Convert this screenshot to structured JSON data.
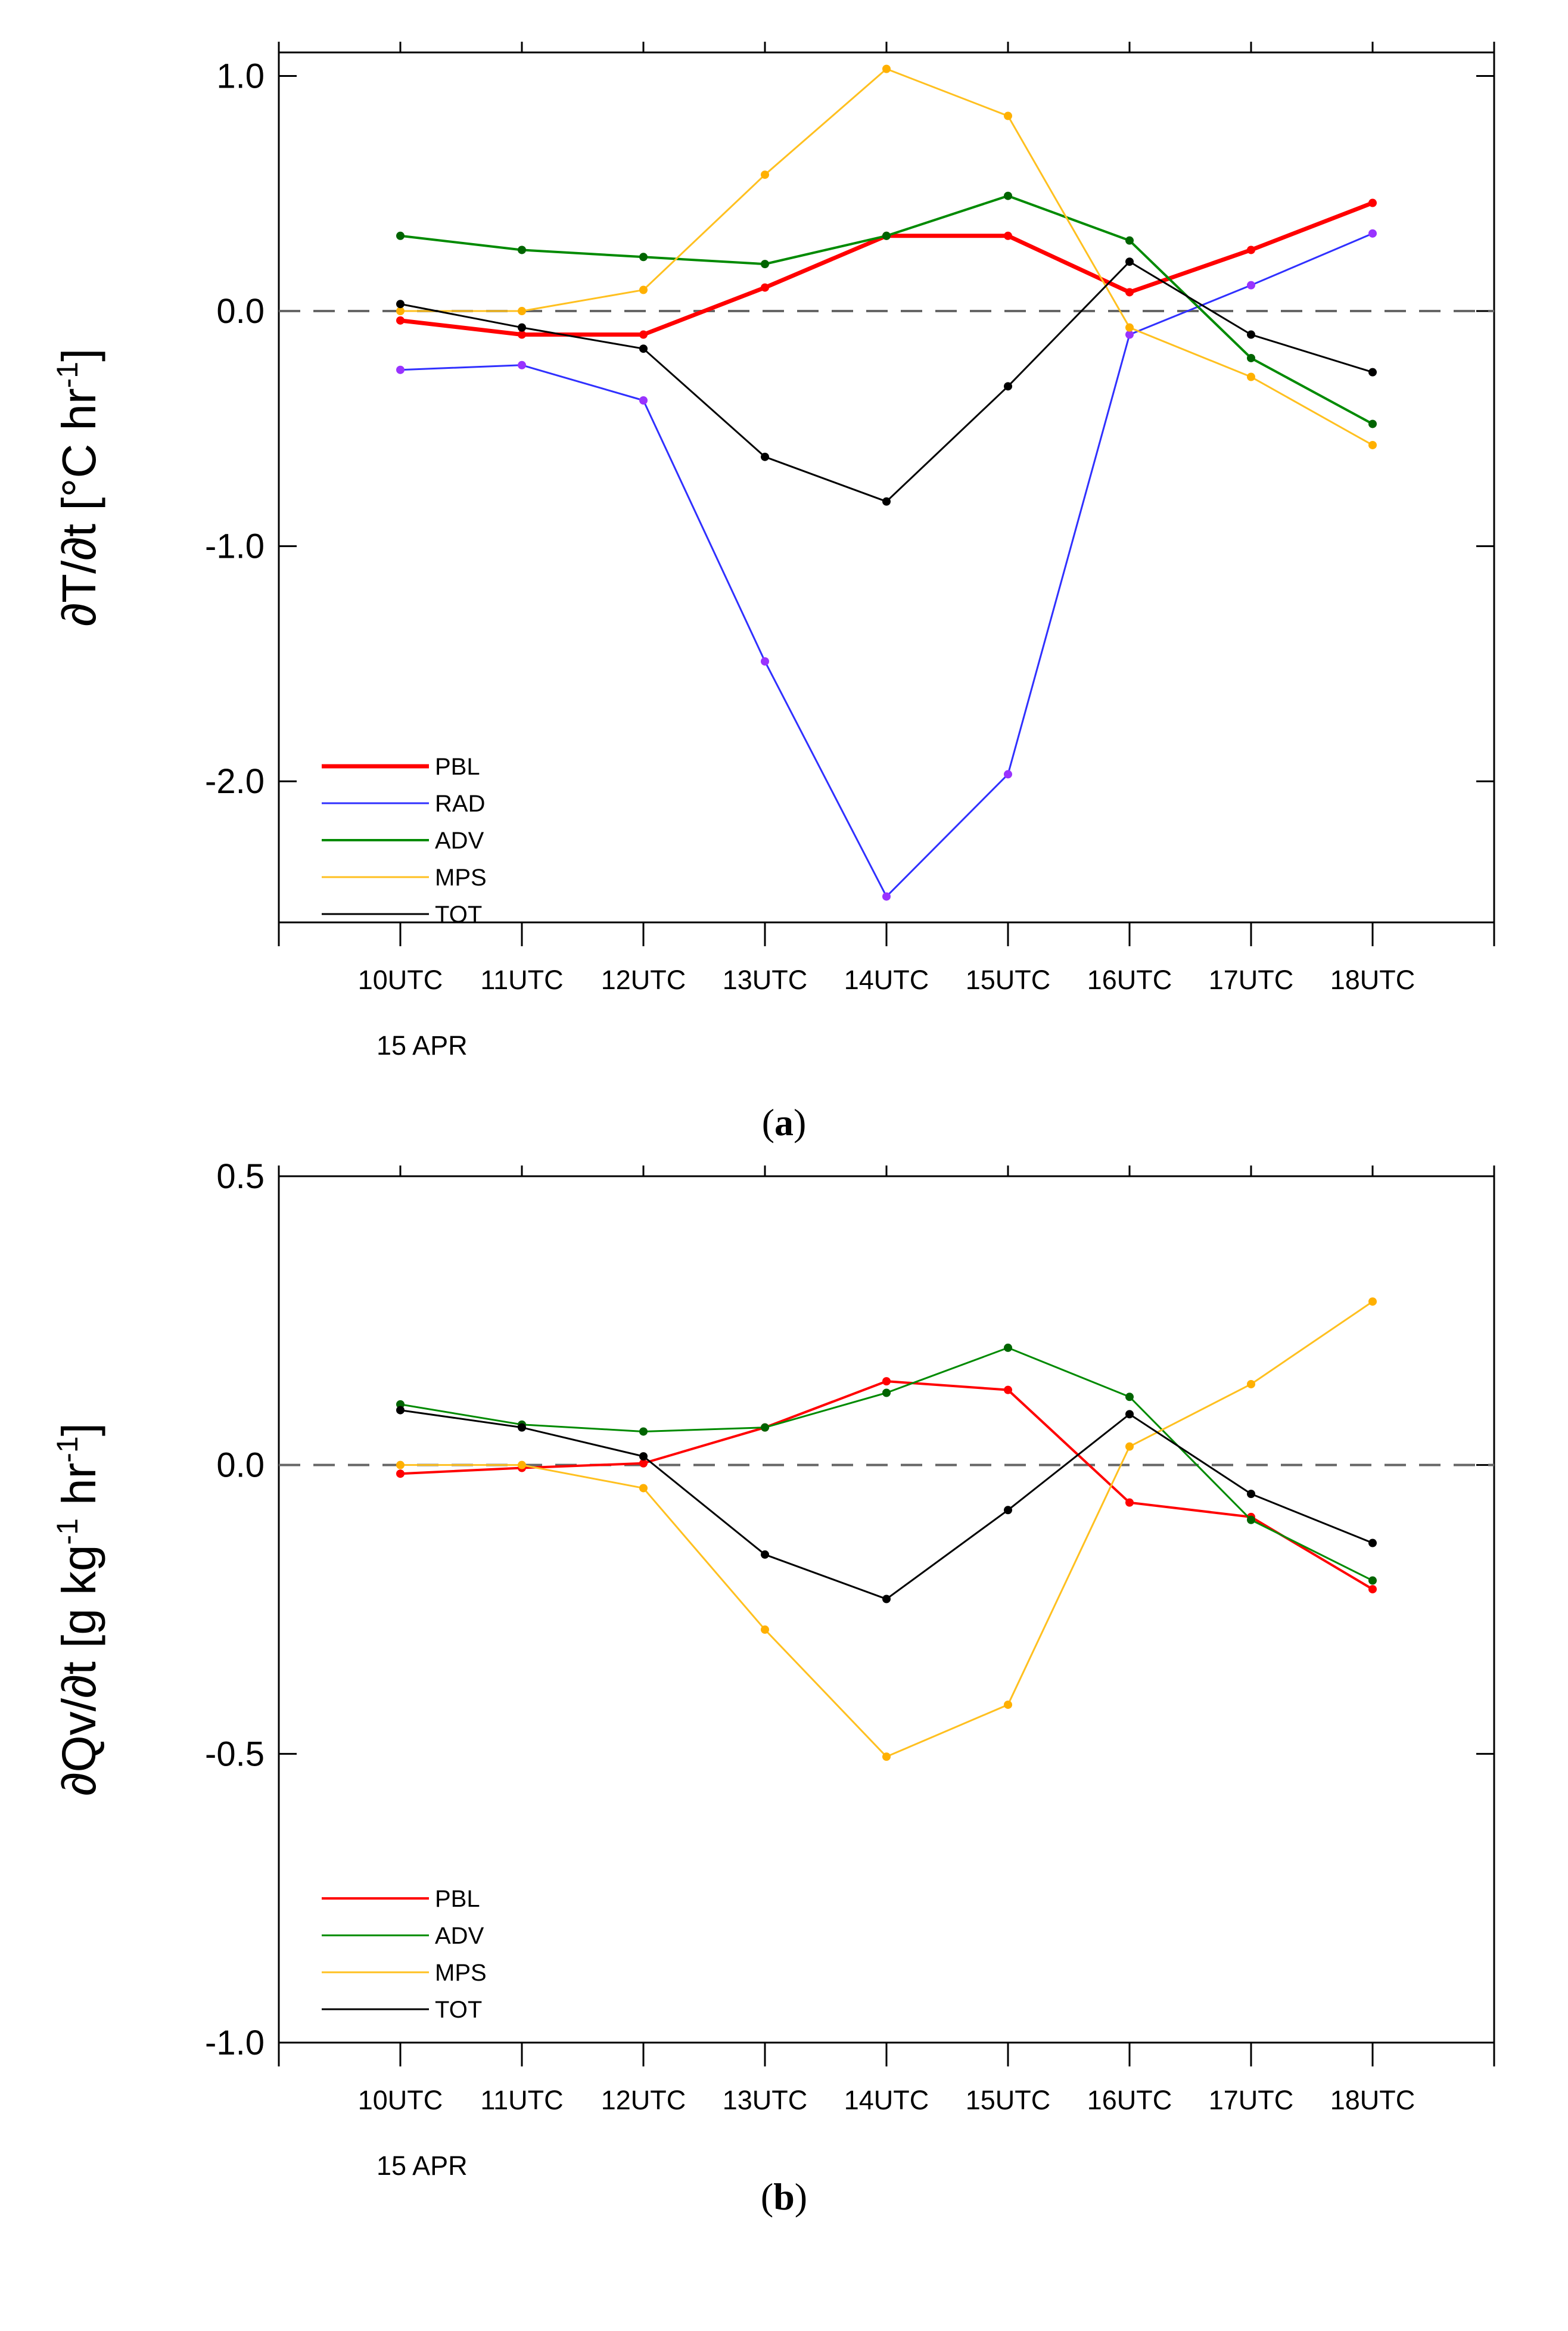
{
  "chart_data": [
    {
      "type": "line",
      "panel_label": "a",
      "ylabel": "∂T/∂t [°C hr-1]",
      "ylabel_main": "∂T/∂t [°C hr",
      "ylabel_sup": "-1",
      "ylabel_end": "]",
      "date_label": "15 APR",
      "ylim": [
        -2.6,
        1.1
      ],
      "xlim": [
        -1,
        9
      ],
      "yticks": [
        1.0,
        0.0,
        -1.0,
        -2.0
      ],
      "ytick_labels": [
        "1.0",
        "0.0",
        "-1.0",
        "-2.0"
      ],
      "categories": [
        "10UTC",
        "11UTC",
        "12UTC",
        "13UTC",
        "14UTC",
        "15UTC",
        "16UTC",
        "17UTC",
        "18UTC"
      ],
      "reference_line": 0.0,
      "series": [
        {
          "name": "PBL",
          "color": "#ff0000",
          "width": 7,
          "marker": "#ff0000",
          "values": [
            -0.04,
            -0.1,
            -0.1,
            0.1,
            0.32,
            0.32,
            0.08,
            0.26,
            0.46
          ]
        },
        {
          "name": "RAD",
          "color": "#3030ff",
          "width": 3,
          "marker": "#9933ff",
          "values": [
            -0.25,
            -0.23,
            -0.38,
            -1.49,
            -2.49,
            -1.97,
            -0.1,
            0.11,
            0.33
          ]
        },
        {
          "name": "ADV",
          "color": "#008a00",
          "width": 4,
          "marker": "#006400",
          "values": [
            0.32,
            0.26,
            0.23,
            0.2,
            0.32,
            0.49,
            0.3,
            -0.2,
            -0.48
          ]
        },
        {
          "name": "MPS",
          "color": "#ffc020",
          "width": 3,
          "marker": "#ffb000",
          "values": [
            0.0,
            0.0,
            0.09,
            0.58,
            1.03,
            0.83,
            -0.07,
            -0.28,
            -0.57
          ]
        },
        {
          "name": "TOT",
          "color": "#000000",
          "width": 3,
          "marker": "#000000",
          "values": [
            0.03,
            -0.07,
            -0.16,
            -0.62,
            -0.81,
            -0.32,
            0.21,
            -0.1,
            -0.26
          ]
        }
      ]
    },
    {
      "type": "line",
      "panel_label": "b",
      "ylabel": "∂Qv/∂t [g kg-1 hr-1]",
      "ylabel_main": "∂Qv/∂t [g kg",
      "ylabel_sup": "-1",
      "ylabel_mid": " hr",
      "ylabel_sup2": "-1",
      "ylabel_end": "]",
      "date_label": "15 APR",
      "ylim": [
        -1.0,
        0.5
      ],
      "xlim": [
        -1,
        9
      ],
      "yticks": [
        0.5,
        0.0,
        -0.5,
        -1.0
      ],
      "ytick_labels": [
        "0.5",
        "0.0",
        "-0.5",
        "-1.0"
      ],
      "categories": [
        "10UTC",
        "11UTC",
        "12UTC",
        "13UTC",
        "14UTC",
        "15UTC",
        "16UTC",
        "17UTC",
        "18UTC"
      ],
      "reference_line": 0.0,
      "series": [
        {
          "name": "PBL",
          "color": "#ff0000",
          "width": 4,
          "marker": "#ff0000",
          "values": [
            -0.015,
            -0.005,
            0.003,
            0.065,
            0.145,
            0.13,
            -0.065,
            -0.09,
            -0.215
          ]
        },
        {
          "name": "ADV",
          "color": "#008a00",
          "width": 3,
          "marker": "#006400",
          "values": [
            0.105,
            0.07,
            0.058,
            0.065,
            0.125,
            0.203,
            0.118,
            -0.095,
            -0.2
          ]
        },
        {
          "name": "MPS",
          "color": "#ffc020",
          "width": 3,
          "marker": "#ffb000",
          "values": [
            0.0,
            0.0,
            -0.04,
            -0.285,
            -0.505,
            -0.415,
            0.032,
            0.14,
            0.283
          ]
        },
        {
          "name": "TOT",
          "color": "#000000",
          "width": 3,
          "marker": "#000000",
          "values": [
            0.095,
            0.065,
            0.015,
            -0.155,
            -0.232,
            -0.078,
            0.088,
            -0.05,
            -0.135
          ]
        }
      ]
    }
  ]
}
